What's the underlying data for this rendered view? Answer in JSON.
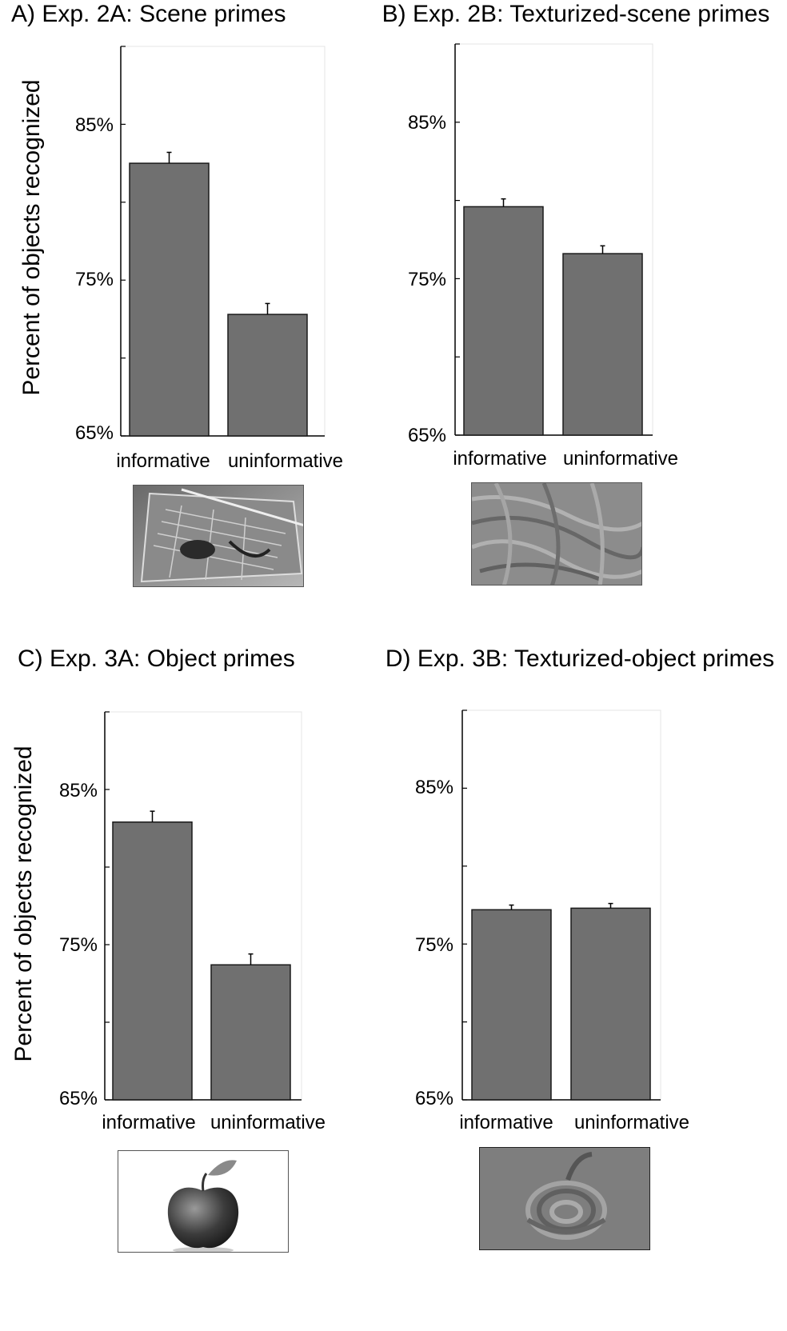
{
  "y_axis_label": "Percent of objects recognized",
  "colors": {
    "bar": "#707070",
    "bar_stroke": "#1a1a1a",
    "axis": "#000000"
  },
  "chart_data": [
    {
      "panel": "A",
      "type": "bar",
      "title": "A) Exp. 2A: Scene primes",
      "categories": [
        "informative",
        "uninformative"
      ],
      "values": [
        82.5,
        72.8
      ],
      "errors": [
        0.7,
        0.7
      ],
      "ylim": [
        65,
        90
      ],
      "yticks": [
        65,
        75,
        85
      ],
      "ytick_labels": [
        "65%",
        "75%",
        "85%"
      ],
      "ylabel": "Percent of objects recognized",
      "prime_image": "scene-photo"
    },
    {
      "panel": "B",
      "type": "bar",
      "title": "B) Exp. 2B: Texturized-scene primes",
      "categories": [
        "informative",
        "uninformative"
      ],
      "values": [
        79.6,
        76.6
      ],
      "errors": [
        0.5,
        0.5
      ],
      "ylim": [
        65,
        90
      ],
      "yticks": [
        65,
        75,
        85
      ],
      "ytick_labels": [
        "65%",
        "75%",
        "85%"
      ],
      "ylabel": "",
      "prime_image": "texturized-scene"
    },
    {
      "panel": "C",
      "type": "bar",
      "title": "C) Exp. 3A: Object primes",
      "categories": [
        "informative",
        "uninformative"
      ],
      "values": [
        82.9,
        73.7
      ],
      "errors": [
        0.7,
        0.7
      ],
      "ylim": [
        65,
        90
      ],
      "yticks": [
        65,
        75,
        85
      ],
      "ytick_labels": [
        "65%",
        "75%",
        "85%"
      ],
      "ylabel": "Percent of objects recognized",
      "prime_image": "apple-photo"
    },
    {
      "panel": "D",
      "type": "bar",
      "title": "D) Exp. 3B: Texturized-object primes",
      "categories": [
        "informative",
        "uninformative"
      ],
      "values": [
        77.2,
        77.3
      ],
      "errors": [
        0.3,
        0.3
      ],
      "ylim": [
        65,
        90
      ],
      "yticks": [
        65,
        75,
        85
      ],
      "ytick_labels": [
        "65%",
        "75%",
        "85%"
      ],
      "ylabel": "",
      "prime_image": "texturized-apple"
    }
  ]
}
